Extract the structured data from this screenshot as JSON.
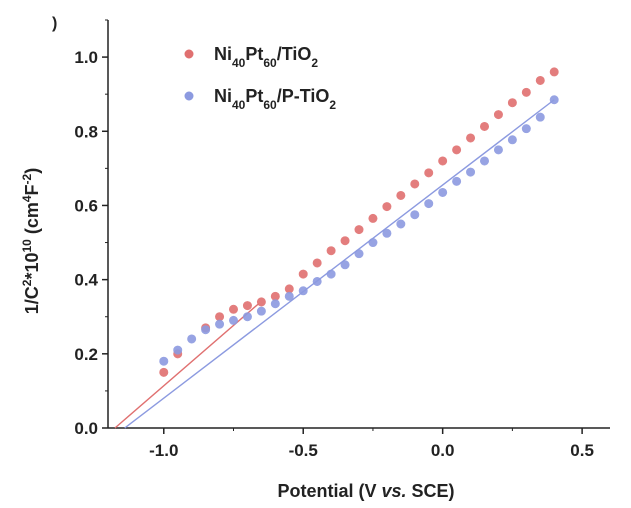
{
  "panel_label": ")",
  "chart_data": {
    "type": "scatter",
    "title": "",
    "xlabel_parts": [
      "Potential (V ",
      "vs.",
      " SCE)"
    ],
    "ylabel_parts": [
      {
        "t": "1/C",
        "s": "n"
      },
      {
        "t": "2",
        "s": "sup"
      },
      {
        "t": "*10",
        "s": "n"
      },
      {
        "t": "10",
        "s": "sup"
      },
      {
        "t": " (cm",
        "s": "n"
      },
      {
        "t": "4",
        "s": "sup"
      },
      {
        "t": "F",
        "s": "n"
      },
      {
        "t": "-2",
        "s": "sup"
      },
      {
        "t": ")",
        "s": "n"
      }
    ],
    "xlim": [
      -1.2,
      0.6
    ],
    "ylim": [
      0.0,
      1.1
    ],
    "xticks": [
      -1.0,
      -0.5,
      0.0,
      0.5
    ],
    "xtick_labels": [
      "-1.0",
      "-0.5",
      "0.0",
      "0.5"
    ],
    "yticks": [
      0.0,
      0.2,
      0.4,
      0.6,
      0.8,
      1.0
    ],
    "ytick_labels": [
      "0.0",
      "0.2",
      "0.4",
      "0.6",
      "0.8",
      "1.0"
    ],
    "grid": false,
    "legend_position": "top-left",
    "series": [
      {
        "name_parts": [
          {
            "t": "Ni",
            "s": "n"
          },
          {
            "t": "40",
            "s": "sub"
          },
          {
            "t": "Pt",
            "s": "n"
          },
          {
            "t": "60",
            "s": "sub"
          },
          {
            "t": "/TiO",
            "s": "n"
          },
          {
            "t": "2",
            "s": "sub"
          }
        ],
        "color": "#e07070",
        "x": [
          -1.0,
          -0.95,
          -0.85,
          -0.8,
          -0.75,
          -0.7,
          -0.65,
          -0.6,
          -0.55,
          -0.5,
          -0.45,
          -0.4,
          -0.35,
          -0.3,
          -0.25,
          -0.2,
          -0.15,
          -0.1,
          -0.05,
          0.0,
          0.05,
          0.1,
          0.15,
          0.2,
          0.25,
          0.3,
          0.35,
          0.4
        ],
        "y": [
          0.15,
          0.2,
          0.27,
          0.3,
          0.32,
          0.33,
          0.34,
          0.355,
          0.375,
          0.415,
          0.445,
          0.478,
          0.505,
          0.535,
          0.565,
          0.597,
          0.627,
          0.658,
          0.688,
          0.72,
          0.75,
          0.782,
          0.813,
          0.845,
          0.877,
          0.905,
          0.937,
          0.96
        ],
        "fit_line": {
          "x": [
            -1.175,
            -0.66
          ],
          "y": [
            0.0,
            0.335
          ]
        }
      },
      {
        "name_parts": [
          {
            "t": "Ni",
            "s": "n"
          },
          {
            "t": "40",
            "s": "sub"
          },
          {
            "t": "Pt",
            "s": "n"
          },
          {
            "t": "60",
            "s": "sub"
          },
          {
            "t": "/P-TiO",
            "s": "n"
          },
          {
            "t": "2",
            "s": "sub"
          }
        ],
        "color": "#8c9ae0",
        "x": [
          -1.0,
          -0.95,
          -0.9,
          -0.85,
          -0.8,
          -0.75,
          -0.7,
          -0.65,
          -0.6,
          -0.55,
          -0.5,
          -0.45,
          -0.4,
          -0.35,
          -0.3,
          -0.25,
          -0.2,
          -0.15,
          -0.1,
          -0.05,
          0.0,
          0.05,
          0.1,
          0.15,
          0.2,
          0.25,
          0.3,
          0.35,
          0.4
        ],
        "y": [
          0.18,
          0.21,
          0.24,
          0.265,
          0.28,
          0.29,
          0.3,
          0.315,
          0.335,
          0.355,
          0.37,
          0.395,
          0.415,
          0.44,
          0.47,
          0.5,
          0.525,
          0.55,
          0.575,
          0.605,
          0.635,
          0.665,
          0.69,
          0.72,
          0.75,
          0.777,
          0.807,
          0.838,
          0.885
        ],
        "fit_line": {
          "x": [
            -1.14,
            0.4
          ],
          "y": [
            0.0,
            0.885
          ]
        }
      }
    ]
  }
}
